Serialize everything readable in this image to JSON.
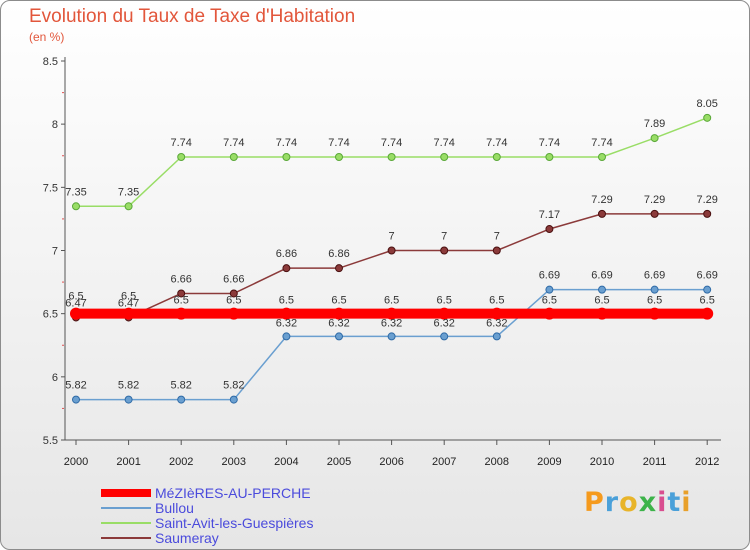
{
  "header": {
    "title": "Evolution du Taux de Taxe d'Habitation",
    "subtitle": "(en %)"
  },
  "logo": {
    "text": "Proxiti",
    "letters": [
      "P",
      "r",
      "o",
      "x",
      "i",
      "t",
      "i"
    ],
    "colors": [
      "#f59a1d",
      "#4aa0d9",
      "#e8b42a",
      "#3db34a",
      "#d94d8f",
      "#4aa0d9",
      "#e8a02a"
    ]
  },
  "chart_data": {
    "type": "line",
    "title": "Evolution du Taux de Taxe d'Habitation",
    "subtitle": "(en %)",
    "xlabel": "",
    "ylabel": "",
    "x": [
      "2000",
      "2001",
      "2002",
      "2003",
      "2004",
      "2005",
      "2006",
      "2007",
      "2008",
      "2009",
      "2010",
      "2011",
      "2012"
    ],
    "yticks": [
      "5.5",
      "6",
      "6.5",
      "7",
      "7.5",
      "8",
      "8.5"
    ],
    "ylim": [
      5.5,
      8.5
    ],
    "grid": false,
    "legend_position": "bottom-left",
    "series": [
      {
        "name": "MéZIèRES-AU-PERCHE",
        "color": "#ff0000",
        "values": [
          6.5,
          6.5,
          6.5,
          6.5,
          6.5,
          6.5,
          6.5,
          6.5,
          6.5,
          6.5,
          6.5,
          6.5,
          6.5
        ],
        "labels": [
          "6.5",
          "6.5",
          "6.5",
          "6.5",
          "6.5",
          "6.5",
          "6.5",
          "6.5",
          "6.5",
          "6.5",
          "6.5",
          "6.5",
          "6.5"
        ]
      },
      {
        "name": "Bullou",
        "color": "#6a9fd0",
        "values": [
          5.82,
          5.82,
          5.82,
          5.82,
          6.32,
          6.32,
          6.32,
          6.32,
          6.32,
          6.69,
          6.69,
          6.69,
          6.69
        ],
        "labels": [
          "5.82",
          "5.82",
          "5.82",
          "5.82",
          "6.32",
          "6.32",
          "6.32",
          "6.32",
          "6.32",
          "6.69",
          "6.69",
          "6.69",
          "6.69"
        ]
      },
      {
        "name": "Saint-Avit-les-Guespières",
        "color": "#99dd66",
        "values": [
          7.35,
          7.35,
          7.74,
          7.74,
          7.74,
          7.74,
          7.74,
          7.74,
          7.74,
          7.74,
          7.74,
          7.89,
          8.05
        ],
        "labels": [
          "7.35",
          "7.35",
          "7.74",
          "7.74",
          "7.74",
          "7.74",
          "7.74",
          "7.74",
          "7.74",
          "7.74",
          "7.74",
          "7.89",
          "8.05"
        ]
      },
      {
        "name": "Saumeray",
        "color": "#8b3a3a",
        "values": [
          6.47,
          6.47,
          6.66,
          6.66,
          6.86,
          6.86,
          7,
          7,
          7,
          7.17,
          7.29,
          7.29,
          7.29
        ],
        "labels": [
          "6.47",
          "6.47",
          "6.66",
          "6.66",
          "6.86",
          "6.86",
          "7",
          "7",
          "7",
          "7.17",
          "7.29",
          "7.29",
          "7.29"
        ]
      }
    ]
  }
}
